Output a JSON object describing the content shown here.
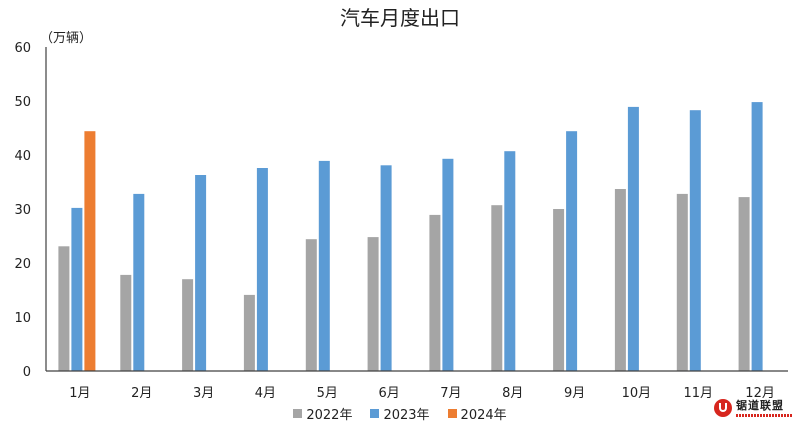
{
  "chart_data": {
    "type": "bar",
    "title": "汽车月度出口",
    "ylabel": "（万辆）",
    "xlabel": "",
    "ylim": [
      0,
      60
    ],
    "yticks": [
      0,
      10,
      20,
      30,
      40,
      50,
      60
    ],
    "grid": false,
    "legend": "bottom",
    "categories": [
      "1月",
      "2月",
      "3月",
      "4月",
      "5月",
      "6月",
      "7月",
      "8月",
      "9月",
      "10月",
      "11月",
      "12月"
    ],
    "series": [
      {
        "name": "2022年",
        "color": "#A5A5A5",
        "values": [
          23.1,
          17.8,
          17.0,
          14.1,
          24.4,
          24.8,
          28.9,
          30.7,
          30.0,
          33.7,
          32.8,
          32.2
        ]
      },
      {
        "name": "2023年",
        "color": "#5B9BD5",
        "values": [
          30.2,
          32.8,
          36.3,
          37.6,
          38.9,
          38.1,
          39.3,
          40.7,
          44.4,
          48.9,
          48.3,
          49.8
        ]
      },
      {
        "name": "2024年",
        "color": "#ED7D31",
        "values": [
          44.4,
          null,
          null,
          null,
          null,
          null,
          null,
          null,
          null,
          null,
          null,
          null
        ]
      }
    ]
  },
  "logo": {
    "text": "锯道联盟"
  }
}
